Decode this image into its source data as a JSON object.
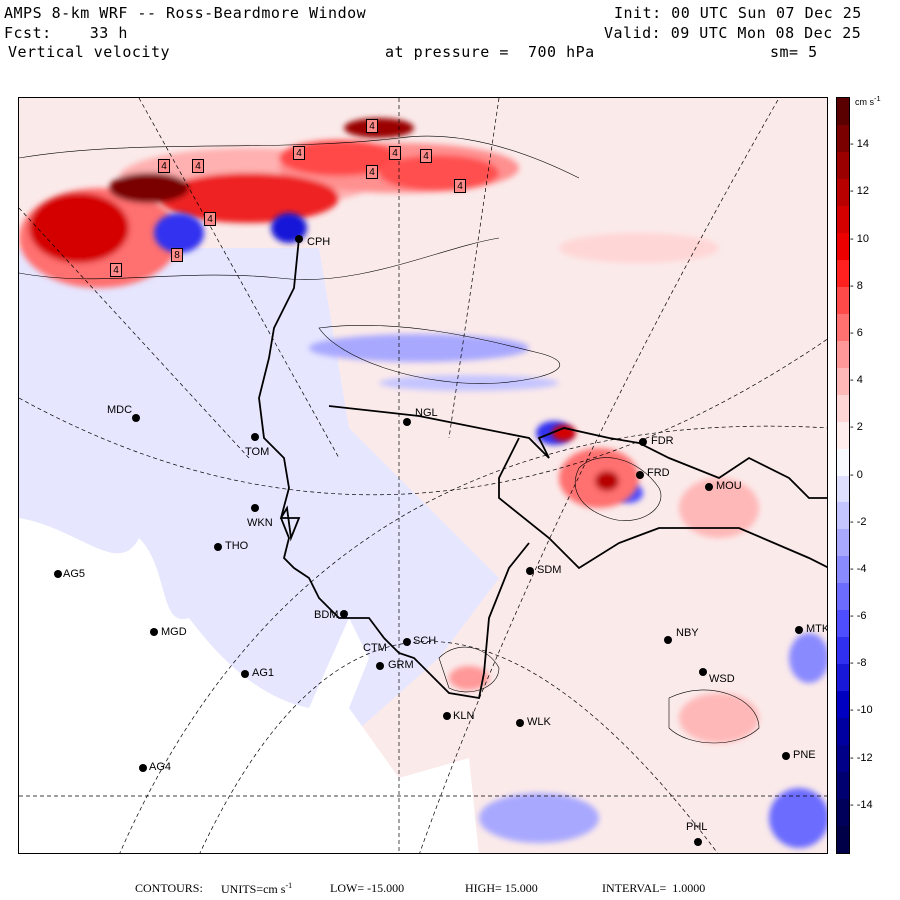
{
  "header": {
    "model": "AMPS 8-km WRF -- Ross-Beardmore Window",
    "forecast": "Fcst:    33 h",
    "variable": "Vertical velocity",
    "pressure": "at pressure =  700 hPa",
    "init": "Init: 00 UTC Sun 07 Dec 25",
    "valid": "Valid: 09 UTC Mon 08 Dec 25",
    "smoothing": "sm= 5"
  },
  "footer": {
    "contours_label": "CONTOURS:",
    "units_label": "UNITS=cm s",
    "units_exp": "-1",
    "low": "LOW= -15.000",
    "high": "HIGH= 15.000",
    "interval": "INTERVAL=  1.0000"
  },
  "colorbar": {
    "units": "cm s",
    "units_exp": "-1",
    "min": -16,
    "max": 16,
    "ticks": [
      "14",
      "12",
      "10",
      "8",
      "6",
      "4",
      "2",
      "0",
      "-2",
      "-4",
      "-6",
      "-8",
      "-10",
      "-12",
      "-14"
    ],
    "colors_top_to_bottom": [
      "#5a0000",
      "#7a0000",
      "#9a0000",
      "#b80000",
      "#d40000",
      "#ec0000",
      "#ff2020",
      "#ff4a4a",
      "#ff7070",
      "#ff9898",
      "#ffb8b8",
      "#ffd6d6",
      "#ffecec",
      "#f8f8ff",
      "#dedeff",
      "#c4c4ff",
      "#a8a8ff",
      "#8a8aff",
      "#6c6cff",
      "#4e4eff",
      "#3030f0",
      "#1818d8",
      "#0000c0",
      "#0000a0",
      "#000088",
      "#000070",
      "#00005a",
      "#000048"
    ]
  },
  "stations": [
    {
      "id": "CPH",
      "label": "CPH"
    },
    {
      "id": "NGL",
      "label": "NGL"
    },
    {
      "id": "MDC",
      "label": "MDC"
    },
    {
      "id": "TOM",
      "label": "TOM"
    },
    {
      "id": "WKN",
      "label": "WKN"
    },
    {
      "id": "THO",
      "label": "THO"
    },
    {
      "id": "AG5",
      "label": "AG5"
    },
    {
      "id": "BDM",
      "label": "BDM"
    },
    {
      "id": "MGD",
      "label": "MGD"
    },
    {
      "id": "CTM",
      "label": "CTM"
    },
    {
      "id": "GRM",
      "label": "GRM"
    },
    {
      "id": "SCH",
      "label": "SCH"
    },
    {
      "id": "AG1",
      "label": "AG1"
    },
    {
      "id": "KLN",
      "label": "KLN"
    },
    {
      "id": "WLK",
      "label": "WLK"
    },
    {
      "id": "AG4",
      "label": "AG4"
    },
    {
      "id": "SDM",
      "label": "SDM"
    },
    {
      "id": "NBY",
      "label": "NBY"
    },
    {
      "id": "WSD",
      "label": "WSD"
    },
    {
      "id": "MTK",
      "label": "MTK"
    },
    {
      "id": "PNE",
      "label": "PNE"
    },
    {
      "id": "PHL",
      "label": "PHL"
    },
    {
      "id": "FDR",
      "label": "FDR"
    },
    {
      "id": "FRD",
      "label": "FRD"
    },
    {
      "id": "MOU",
      "label": "MOU"
    }
  ],
  "extrema_labels": [
    "4",
    "4",
    "4",
    "4",
    "4",
    "4",
    "4",
    "8",
    "4",
    "4",
    "4"
  ]
}
